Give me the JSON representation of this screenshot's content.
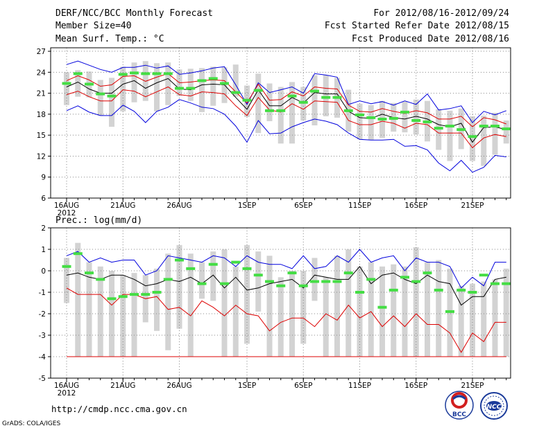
{
  "header": {
    "title": "DERF/NCC/BCC Monthly Forecast",
    "member": "Member Size=40",
    "variable": "Mean Surf. Temp.: °C",
    "period": "For 2012/08/16-2012/09/24",
    "started": "Fcst Started Refer Date 2012/08/15",
    "produced": "Fcst Produced Date 2012/08/16"
  },
  "footer": {
    "url": "http://cmdp.ncc.cma.gov.cn",
    "grads": "GrADS: COLA/IGES",
    "logo_bcc": "BCC",
    "logo_ncc": "NCC"
  },
  "colors": {
    "bars": "#d3d3d3",
    "blue": "#0000dd",
    "red": "#dd0000",
    "mean": "#000000",
    "green": "#44dd44",
    "grid": "#888888"
  },
  "chart_data": [
    {
      "type": "line",
      "title": "Mean Surf. Temp.: °C",
      "ylim": [
        6,
        27.5
      ],
      "yticks": [
        6,
        9,
        12,
        15,
        18,
        21,
        24,
        27
      ],
      "xticks": [
        {
          "day": 0,
          "label": "16AUG",
          "sub": "2012"
        },
        {
          "day": 5,
          "label": "21AUG"
        },
        {
          "day": 10,
          "label": "26AUG"
        },
        {
          "day": 16,
          "label": "1SEP"
        },
        {
          "day": 21,
          "label": "6SEP"
        },
        {
          "day": 26,
          "label": "11SEP"
        },
        {
          "day": 31,
          "label": "16SEP"
        },
        {
          "day": 36,
          "label": "21SEP"
        }
      ],
      "bars_low": [
        19.3,
        20.5,
        20.4,
        17.8,
        16.2,
        18.4,
        19.7,
        19.9,
        18.4,
        19.3,
        20.6,
        19.9,
        18.3,
        19.2,
        19.6,
        20.5,
        17.6,
        15.3,
        17.0,
        13.8,
        13.8,
        17.1,
        16.4,
        17.7,
        17.5,
        15.5,
        14.4,
        14.3,
        14.6,
        15.5,
        15.4,
        15.1,
        14.1,
        12.9,
        11.3,
        13.0,
        11.3,
        10.6,
        12.2,
        13.8
      ],
      "bars_high": [
        24.0,
        24.3,
        24.1,
        22.9,
        23.2,
        24.8,
        25.4,
        25.6,
        25.3,
        25.4,
        24.4,
        24.5,
        24.6,
        24.8,
        24.7,
        25.1,
        22.1,
        23.8,
        22.4,
        21.9,
        22.6,
        21.9,
        23.6,
        23.6,
        23.2,
        21.5,
        19.5,
        19.3,
        19.9,
        19.6,
        19.8,
        20.1,
        19.9,
        18.7,
        18.5,
        18.8,
        17.7,
        17.8,
        18.2,
        17.1
      ],
      "series": [
        {
          "name": "max",
          "color": "blue",
          "values": [
            25.1,
            25.6,
            25.0,
            24.4,
            24.0,
            24.7,
            24.7,
            25.0,
            24.6,
            24.9,
            23.7,
            23.9,
            24.2,
            24.6,
            24.8,
            22.2,
            19.4,
            22.5,
            21.1,
            21.5,
            21.9,
            21.0,
            23.8,
            23.6,
            23.3,
            19.4,
            19.9,
            19.5,
            19.8,
            19.3,
            19.9,
            19.4,
            20.9,
            18.6,
            18.8,
            19.2,
            16.8,
            18.4,
            17.9,
            18.5
          ]
        },
        {
          "name": "upper",
          "color": "red",
          "values": [
            22.8,
            23.5,
            22.9,
            22.0,
            22.2,
            23.4,
            23.5,
            22.7,
            23.3,
            23.8,
            22.5,
            22.6,
            22.8,
            22.9,
            22.8,
            21.2,
            19.6,
            22.3,
            20.0,
            20.1,
            21.2,
            20.6,
            21.9,
            21.7,
            21.6,
            19.3,
            18.4,
            18.3,
            18.8,
            18.4,
            18.1,
            18.5,
            18.2,
            17.3,
            17.3,
            17.7,
            16.2,
            17.5,
            17.2,
            16.6
          ]
        },
        {
          "name": "mean",
          "color": "mean",
          "values": [
            21.9,
            22.6,
            21.6,
            21.0,
            21.0,
            22.3,
            22.8,
            21.7,
            22.5,
            23.1,
            21.6,
            21.5,
            22.2,
            22.3,
            22.2,
            20.4,
            18.7,
            21.5,
            19.2,
            19.2,
            20.4,
            19.6,
            21.1,
            20.9,
            20.9,
            18.4,
            17.5,
            17.4,
            18.0,
            17.5,
            17.3,
            17.7,
            17.3,
            16.5,
            16.2,
            16.7,
            14.0,
            16.1,
            16.2,
            15.8
          ]
        },
        {
          "name": "lower",
          "color": "red",
          "values": [
            20.8,
            21.3,
            20.5,
            19.9,
            19.9,
            21.5,
            21.3,
            20.5,
            21.2,
            21.9,
            20.8,
            20.6,
            21.2,
            21.1,
            20.9,
            19.2,
            17.8,
            20.4,
            18.6,
            18.3,
            19.5,
            18.7,
            19.9,
            19.8,
            19.7,
            17.1,
            16.5,
            16.5,
            17.0,
            16.7,
            16.0,
            16.7,
            16.5,
            15.3,
            15.3,
            15.3,
            13.2,
            14.6,
            15.1,
            14.8
          ]
        },
        {
          "name": "min",
          "color": "blue",
          "values": [
            18.5,
            19.2,
            18.3,
            17.8,
            17.8,
            19.3,
            18.4,
            16.8,
            18.4,
            19.0,
            20.1,
            19.6,
            19.0,
            18.8,
            18.0,
            16.3,
            14.0,
            17.1,
            15.2,
            15.3,
            16.2,
            16.8,
            17.3,
            17.0,
            16.5,
            15.3,
            14.4,
            14.3,
            14.3,
            14.4,
            13.4,
            13.5,
            12.9,
            11.0,
            9.9,
            11.4,
            9.7,
            10.4,
            12.1,
            11.9
          ]
        }
      ],
      "markers": [
        22.4,
        23.8,
        22.3,
        20.9,
        20.6,
        23.7,
        23.9,
        23.8,
        23.8,
        23.8,
        21.7,
        21.7,
        22.8,
        23.1,
        22.4,
        21.1,
        20.0,
        21.4,
        18.5,
        18.5,
        20.6,
        19.7,
        21.3,
        20.4,
        20.4,
        18.5,
        17.9,
        17.5,
        17.3,
        17.4,
        18.3,
        17.1,
        16.9,
        16.0,
        16.3,
        15.8,
        14.8,
        16.3,
        16.3,
        15.9
      ]
    },
    {
      "type": "line",
      "title": "Prec.: log(mm/d)",
      "ylim": [
        -5,
        2
      ],
      "yticks": [
        -5,
        -4,
        -3,
        -2,
        -1,
        0,
        1,
        2
      ],
      "xticks": [
        {
          "day": 0,
          "label": "16AUG",
          "sub": "2012"
        },
        {
          "day": 5,
          "label": "21AUG"
        },
        {
          "day": 10,
          "label": "26AUG"
        },
        {
          "day": 16,
          "label": "1SEP"
        },
        {
          "day": 21,
          "label": "6SEP"
        },
        {
          "day": 26,
          "label": "11SEP"
        },
        {
          "day": 31,
          "label": "16SEP"
        },
        {
          "day": 36,
          "label": "21SEP"
        }
      ],
      "bars_low": [
        -1.5,
        -4.0,
        -4.0,
        -4.0,
        -4.0,
        -4.0,
        -4.0,
        -2.4,
        -2.8,
        -3.7,
        -2.7,
        -4.0,
        -1.3,
        -1.4,
        -4.0,
        -4.0,
        -3.4,
        -1.9,
        -4.0,
        -4.0,
        -4.0,
        -3.4,
        -1.4,
        -4.0,
        -4.0,
        -4.0,
        -4.0,
        -4.0,
        -4.0,
        -4.0,
        -4.0,
        -4.0,
        -4.0,
        -4.0,
        -4.0,
        -4.0,
        -4.0,
        -4.0,
        -4.0,
        -4.0
      ],
      "bars_high": [
        0.6,
        1.3,
        0.4,
        0.2,
        0.0,
        -0.2,
        -0.1,
        -0.2,
        0.1,
        0.8,
        1.2,
        0.8,
        0.4,
        0.9,
        1.0,
        0.2,
        1.2,
        0.9,
        0.7,
        -0.3,
        0.0,
        0.0,
        0.6,
        -0.3,
        0.7,
        1.0,
        0.2,
        0.4,
        0.2,
        0.3,
        0.2,
        1.1,
        0.4,
        0.5,
        0.1,
        -0.7,
        -0.6,
        -0.5,
        -0.4,
        0.1
      ],
      "series": [
        {
          "name": "max",
          "color": "blue",
          "values": [
            0.7,
            0.9,
            0.4,
            0.6,
            0.4,
            0.5,
            0.5,
            -0.2,
            0.0,
            0.7,
            0.6,
            0.5,
            0.4,
            0.7,
            0.6,
            0.2,
            0.7,
            0.4,
            0.3,
            0.3,
            0.1,
            0.7,
            0.1,
            0.2,
            0.7,
            0.4,
            1.0,
            0.4,
            0.6,
            0.7,
            0.0,
            0.6,
            0.4,
            0.4,
            0.2,
            -0.8,
            -0.3,
            -0.7,
            0.4,
            0.4
          ]
        },
        {
          "name": "mean",
          "color": "mean",
          "values": [
            -0.2,
            -0.1,
            -0.3,
            -0.4,
            -0.2,
            -0.2,
            -0.4,
            -0.7,
            -0.6,
            -0.4,
            -0.5,
            -0.3,
            -0.6,
            -0.2,
            -0.8,
            -0.3,
            -0.9,
            -0.8,
            -0.6,
            -0.5,
            -0.4,
            -0.8,
            -0.2,
            -0.3,
            -0.4,
            -0.4,
            0.2,
            -0.6,
            -0.2,
            -0.1,
            -0.4,
            -0.6,
            -0.2,
            -0.5,
            -0.6,
            -1.6,
            -1.2,
            -1.2,
            -0.4,
            -0.3
          ]
        },
        {
          "name": "lower",
          "color": "red",
          "values": [
            -0.8,
            -1.1,
            -1.1,
            -1.1,
            -1.6,
            -1.1,
            -1.1,
            -1.3,
            -1.2,
            -1.8,
            -1.7,
            -2.1,
            -1.4,
            -1.7,
            -2.1,
            -1.6,
            -2.0,
            -2.1,
            -2.8,
            -2.4,
            -2.2,
            -2.2,
            -2.6,
            -2.0,
            -2.3,
            -1.6,
            -2.2,
            -1.9,
            -2.6,
            -2.1,
            -2.6,
            -2.0,
            -2.5,
            -2.5,
            -2.9,
            -3.8,
            -2.9,
            -3.3,
            -2.4,
            -2.4
          ]
        },
        {
          "name": "min",
          "color": "red",
          "values": [
            -4,
            -4,
            -4,
            -4,
            -4,
            -4,
            -4,
            -4,
            -4,
            -4,
            -4,
            -4,
            -4,
            -4,
            -4,
            -4,
            -4,
            -4,
            -4,
            -4,
            -4,
            -4,
            -4,
            -4,
            -4,
            -4,
            -4,
            -4,
            -4,
            -4,
            -4,
            -4,
            -4,
            -4,
            -4,
            -4,
            -4,
            -4,
            -4,
            -4
          ]
        }
      ],
      "markers": [
        0.2,
        0.8,
        -0.1,
        -0.4,
        -1.3,
        -1.2,
        -1.1,
        -1.1,
        -1.0,
        -0.4,
        0.5,
        0.1,
        -0.6,
        0.3,
        -0.6,
        0.4,
        0.1,
        -0.2,
        -0.5,
        -0.7,
        -0.1,
        -0.7,
        -0.5,
        -0.5,
        -0.5,
        -0.1,
        -1.0,
        -0.4,
        -1.7,
        -0.9,
        -0.3,
        -0.5,
        -0.1,
        -0.9,
        -1.9,
        -0.9,
        -1.0,
        -0.2,
        -0.6,
        -0.6
      ]
    }
  ]
}
